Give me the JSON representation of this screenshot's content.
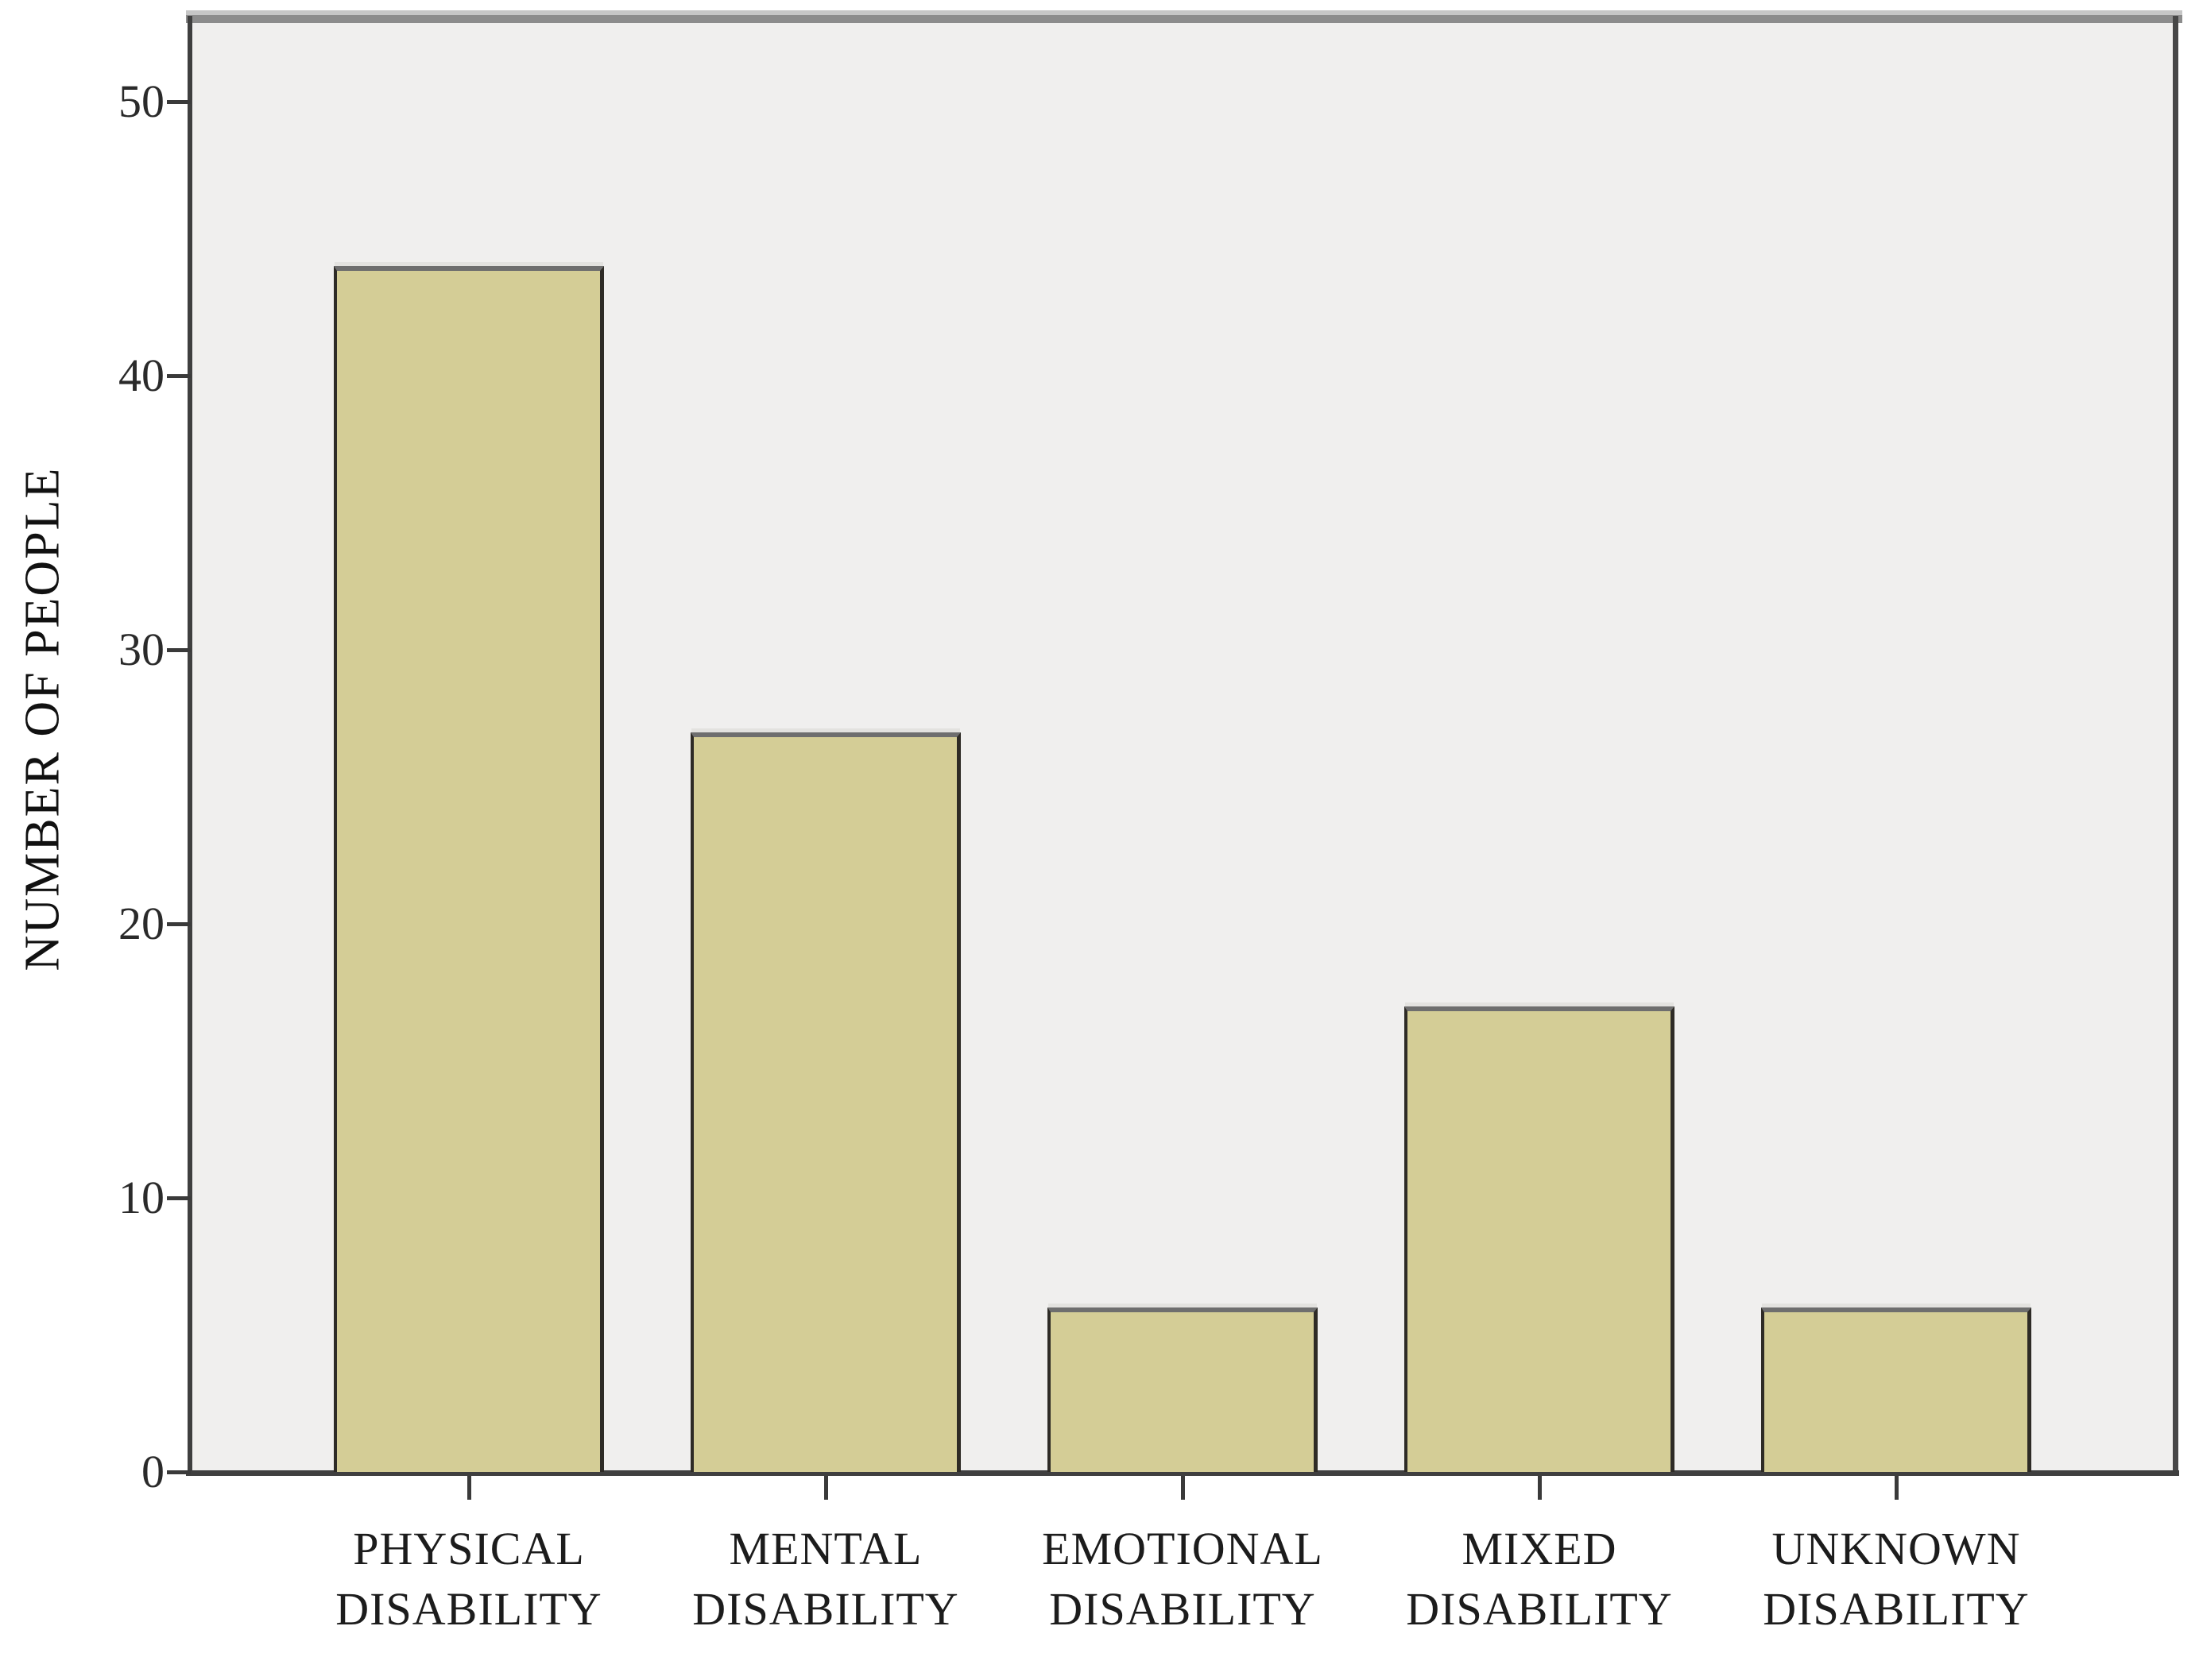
{
  "chart_data": {
    "type": "bar",
    "title": "",
    "ylabel": "NUMBER OF PEOPLE",
    "xlabel": "",
    "categories": [
      {
        "line1": "PHYSICAL",
        "line2": "DISABILITY"
      },
      {
        "line1": "MENTAL",
        "line2": "DISABILITY"
      },
      {
        "line1": "EMOTIONAL",
        "line2": "DISABILITY"
      },
      {
        "line1": "MIXED",
        "line2": "DISABILITY"
      },
      {
        "line1": "UNKNOWN",
        "line2": "DISABILITY"
      }
    ],
    "values": [
      44,
      27,
      6,
      17,
      6
    ],
    "yticks": [
      0,
      10,
      20,
      30,
      40,
      50
    ],
    "ylim": [
      0,
      53
    ],
    "grid": false,
    "legend": "none",
    "colors": {
      "bar_fill": "#d4cd96",
      "bar_border": "#2e2b26",
      "plot_background": "#f0efee",
      "frame": "#3f3f3f",
      "text": "#1c1c1c"
    }
  }
}
